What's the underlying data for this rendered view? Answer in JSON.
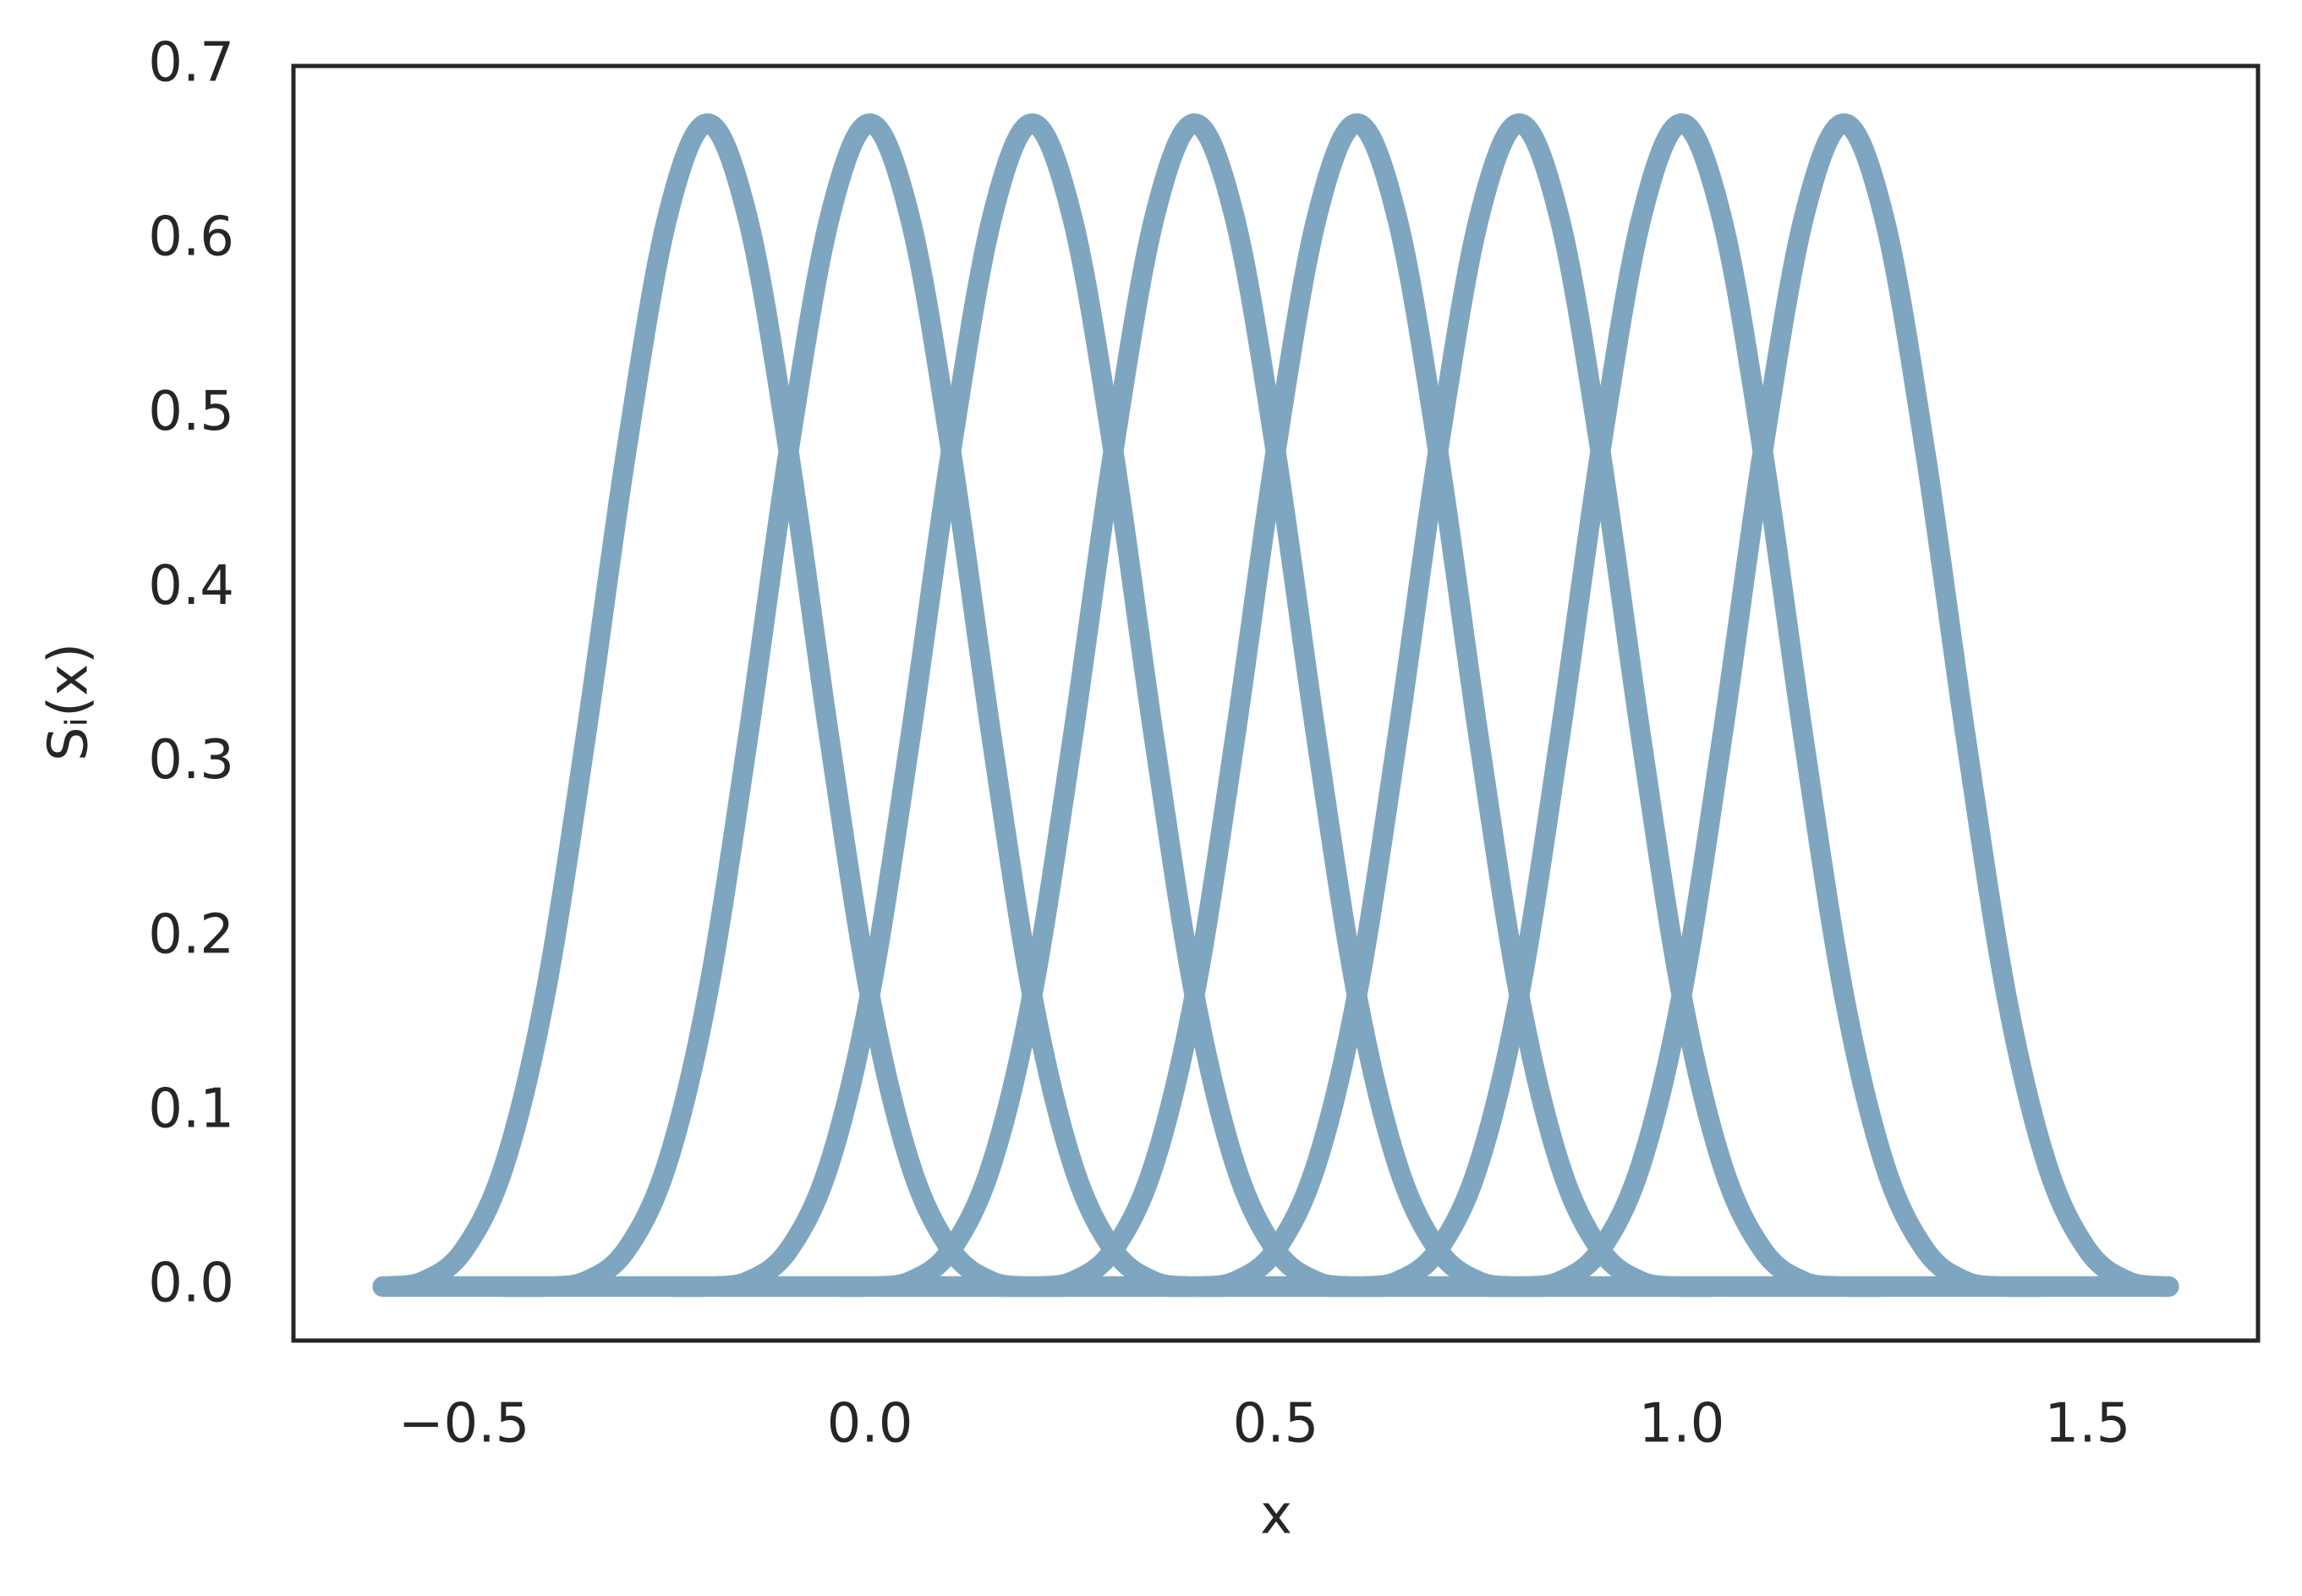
{
  "chart_data": {
    "type": "line",
    "xlabel": "x",
    "ylabel": "Sᵢ(x)",
    "xlim": [
      -0.71,
      1.71
    ],
    "ylim": [
      -0.031,
      0.7
    ],
    "xticks": [
      {
        "value": -0.5,
        "label": "−0.5"
      },
      {
        "value": 0,
        "label": "0.0"
      },
      0.5,
      {
        "value": 1,
        "label": "1.0"
      },
      1.5
    ],
    "yticks": [
      {
        "value": 0,
        "label": "0.0"
      },
      0.1,
      0.2,
      0.3,
      0.4,
      0.5,
      0.6,
      0.7
    ],
    "grid": false,
    "x": [
      -0.6,
      -0.55,
      -0.5,
      -0.45,
      -0.4,
      -0.35,
      -0.3,
      -0.25,
      -0.2,
      -0.15,
      -0.1,
      -0.05,
      0,
      0.05,
      0.1,
      0.15,
      0.2,
      0.25,
      0.3,
      0.35,
      0.4,
      0.45,
      0.5,
      0.55,
      0.6,
      0.65,
      0.7,
      0.75,
      0.8,
      0.85,
      0.9,
      0.95,
      1,
      1.05,
      1.1,
      1.15,
      1.2,
      1.25,
      1.3,
      1.35,
      1.4,
      1.45,
      1.5,
      1.55,
      1.6
    ],
    "series": [
      {
        "color": "#7fa6c0",
        "values": [
          0,
          0.003,
          0.021,
          0.07,
          0.167,
          0.315,
          0.479,
          0.612,
          0.667,
          0.612,
          0.479,
          0.315,
          0.167,
          0.07,
          0.021,
          0.003,
          0,
          0,
          0,
          0,
          0,
          0,
          0,
          0,
          0,
          0,
          0,
          0,
          0,
          0,
          0,
          0,
          0,
          0,
          0,
          0,
          0,
          0,
          0,
          0,
          0,
          0,
          0,
          0,
          0
        ]
      },
      {
        "color": "#7fa6c0",
        "values": [
          0,
          0,
          0,
          0,
          0,
          0.003,
          0.021,
          0.07,
          0.167,
          0.315,
          0.479,
          0.612,
          0.667,
          0.612,
          0.479,
          0.315,
          0.167,
          0.07,
          0.021,
          0.003,
          0,
          0,
          0,
          0,
          0,
          0,
          0,
          0,
          0,
          0,
          0,
          0,
          0,
          0,
          0,
          0,
          0,
          0,
          0,
          0,
          0,
          0,
          0,
          0,
          0
        ]
      },
      {
        "color": "#7fa6c0",
        "values": [
          0,
          0,
          0,
          0,
          0,
          0,
          0,
          0,
          0,
          0.003,
          0.021,
          0.07,
          0.167,
          0.315,
          0.479,
          0.612,
          0.667,
          0.612,
          0.479,
          0.315,
          0.167,
          0.07,
          0.021,
          0.003,
          0,
          0,
          0,
          0,
          0,
          0,
          0,
          0,
          0,
          0,
          0,
          0,
          0,
          0,
          0,
          0,
          0,
          0,
          0,
          0,
          0
        ]
      },
      {
        "color": "#7fa6c0",
        "values": [
          0,
          0,
          0,
          0,
          0,
          0,
          0,
          0,
          0,
          0,
          0,
          0,
          0,
          0.003,
          0.021,
          0.07,
          0.167,
          0.315,
          0.479,
          0.612,
          0.667,
          0.612,
          0.479,
          0.315,
          0.167,
          0.07,
          0.021,
          0.003,
          0,
          0,
          0,
          0,
          0,
          0,
          0,
          0,
          0,
          0,
          0,
          0,
          0,
          0,
          0,
          0,
          0
        ]
      },
      {
        "color": "#7fa6c0",
        "values": [
          0,
          0,
          0,
          0,
          0,
          0,
          0,
          0,
          0,
          0,
          0,
          0,
          0,
          0,
          0,
          0,
          0,
          0.003,
          0.021,
          0.07,
          0.167,
          0.315,
          0.479,
          0.612,
          0.667,
          0.612,
          0.479,
          0.315,
          0.167,
          0.07,
          0.021,
          0.003,
          0,
          0,
          0,
          0,
          0,
          0,
          0,
          0,
          0,
          0,
          0,
          0,
          0
        ]
      },
      {
        "color": "#7fa6c0",
        "values": [
          0,
          0,
          0,
          0,
          0,
          0,
          0,
          0,
          0,
          0,
          0,
          0,
          0,
          0,
          0,
          0,
          0,
          0,
          0,
          0,
          0,
          0.003,
          0.021,
          0.07,
          0.167,
          0.315,
          0.479,
          0.612,
          0.667,
          0.612,
          0.479,
          0.315,
          0.167,
          0.07,
          0.021,
          0.003,
          0,
          0,
          0,
          0,
          0,
          0,
          0,
          0,
          0
        ]
      },
      {
        "color": "#7fa6c0",
        "values": [
          0,
          0,
          0,
          0,
          0,
          0,
          0,
          0,
          0,
          0,
          0,
          0,
          0,
          0,
          0,
          0,
          0,
          0,
          0,
          0,
          0,
          0,
          0,
          0,
          0,
          0.003,
          0.021,
          0.07,
          0.167,
          0.315,
          0.479,
          0.612,
          0.667,
          0.612,
          0.479,
          0.315,
          0.167,
          0.07,
          0.021,
          0.003,
          0,
          0,
          0,
          0,
          0
        ]
      },
      {
        "color": "#7fa6c0",
        "values": [
          0,
          0,
          0,
          0,
          0,
          0,
          0,
          0,
          0,
          0,
          0,
          0,
          0,
          0,
          0,
          0,
          0,
          0,
          0,
          0,
          0,
          0,
          0,
          0,
          0,
          0,
          0,
          0,
          0,
          0.003,
          0.021,
          0.07,
          0.167,
          0.315,
          0.479,
          0.612,
          0.667,
          0.612,
          0.479,
          0.315,
          0.167,
          0.07,
          0.021,
          0.003,
          0
        ]
      }
    ]
  }
}
